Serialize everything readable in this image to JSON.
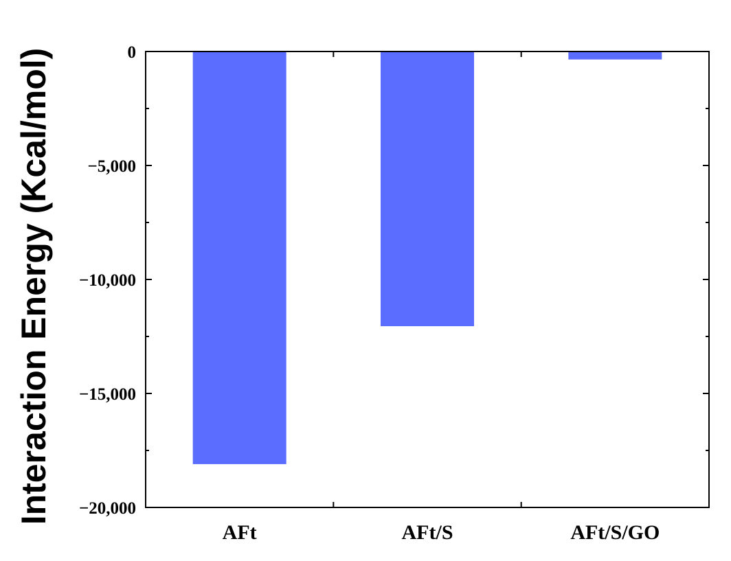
{
  "chart_data": {
    "type": "bar",
    "title": "",
    "xlabel": "",
    "ylabel": "Interaction Energy (Kcal/mol)",
    "categories": [
      "AFt",
      "AFt/S",
      "AFt/S/GO"
    ],
    "values": [
      -18100,
      -12050,
      -350
    ],
    "ylim": [
      -20000,
      0
    ],
    "yticks": [
      0,
      -5000,
      -10000,
      -15000,
      -20000
    ],
    "ytick_labels": [
      "0",
      "−5,000",
      "−10,000",
      "−15,000",
      "−20,000"
    ],
    "bar_color": "#5b6dff",
    "grid": false,
    "legend": "none"
  }
}
